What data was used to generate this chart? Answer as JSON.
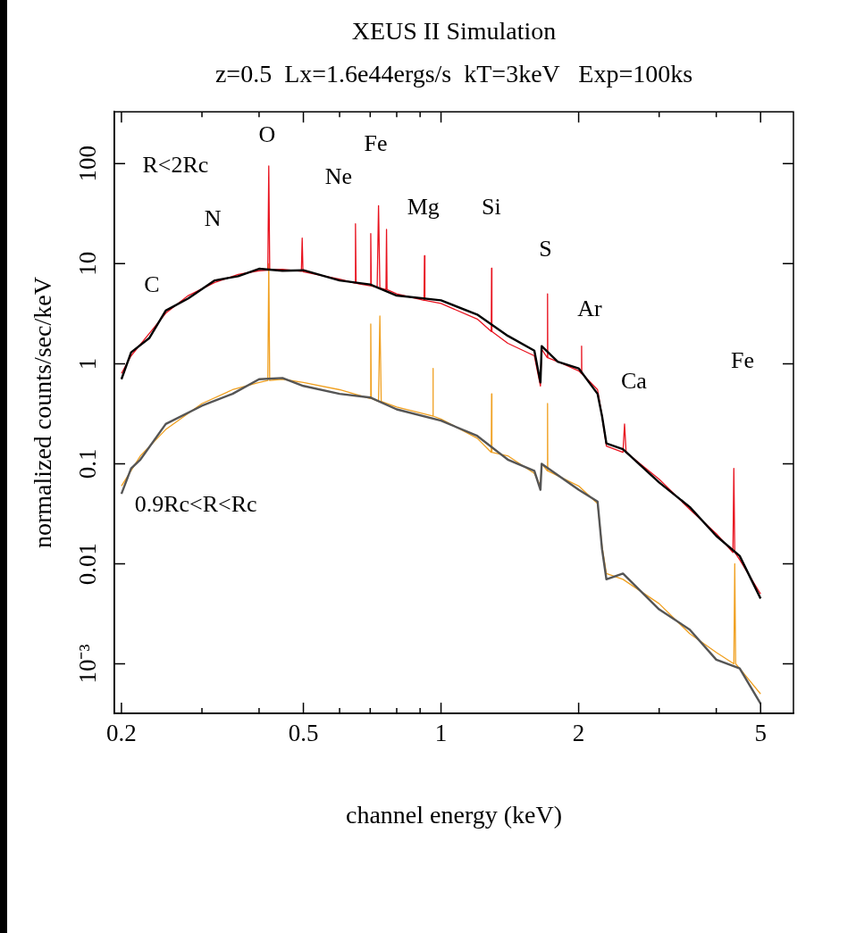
{
  "chart_data": {
    "type": "line",
    "title": "XEUS II Simulation",
    "subtitle": "z=0.5  Lx=1.6e44ergs/s  kT=3keV   Exp=100ks",
    "xlabel": "channel energy (keV)",
    "ylabel": "normalized counts/sec/keV",
    "log": "xy",
    "grid": false,
    "legend": false,
    "marker": "none",
    "xlim": [
      0.193,
      5.9
    ],
    "ylim": [
      0.00032,
      330
    ],
    "xticks": [
      0.2,
      {
        "value": 0.3,
        "label": null
      },
      {
        "value": 0.4,
        "label": null
      },
      0.5,
      {
        "value": 0.6,
        "label": null
      },
      {
        "value": 0.7,
        "label": null
      },
      {
        "value": 0.8,
        "label": null
      },
      {
        "value": 0.9,
        "label": null
      },
      1,
      2,
      {
        "value": 3,
        "label": null
      },
      {
        "value": 4,
        "label": null
      },
      5
    ],
    "yticks": [
      {
        "value": 0.001,
        "label": "10⁻³"
      },
      0.01,
      0.1,
      1,
      10,
      100
    ],
    "series": [
      {
        "color": "#000000",
        "x": [
          0.2,
          0.21,
          0.23,
          0.25,
          0.28,
          0.32,
          0.36,
          0.4,
          0.45,
          0.5,
          0.6,
          0.7,
          0.8,
          1.0,
          1.2,
          1.4,
          1.6,
          1.65,
          1.66,
          1.8,
          2.0,
          2.2,
          2.25,
          2.3,
          2.5,
          3.0,
          3.5,
          4.0,
          4.5,
          5.0
        ],
        "values": [
          0.7,
          1.3,
          1.8,
          3.4,
          4.5,
          6.8,
          7.5,
          8.9,
          8.5,
          8.6,
          6.8,
          6.2,
          4.8,
          4.3,
          3.1,
          1.9,
          1.35,
          0.65,
          1.5,
          1.05,
          0.9,
          0.5,
          0.3,
          0.16,
          0.14,
          0.065,
          0.037,
          0.019,
          0.012,
          0.0045
        ]
      },
      {
        "color": "#e8121e",
        "x": [
          0.2,
          0.21,
          0.23,
          0.25,
          0.28,
          0.32,
          0.36,
          0.4,
          0.418,
          0.42,
          0.422,
          0.45,
          0.495,
          0.497,
          0.499,
          0.6,
          0.648,
          0.65,
          0.652,
          0.66,
          0.7,
          0.702,
          0.704,
          0.725,
          0.73,
          0.735,
          0.758,
          0.76,
          0.762,
          0.8,
          0.918,
          0.92,
          0.922,
          1.0,
          1.2,
          1.288,
          1.29,
          1.292,
          1.4,
          1.6,
          1.65,
          1.66,
          1.708,
          1.71,
          1.712,
          1.8,
          2.0,
          2.028,
          2.03,
          2.032,
          2.2,
          2.25,
          2.3,
          2.5,
          2.52,
          2.54,
          3.0,
          3.5,
          4.0,
          4.35,
          4.37,
          4.39,
          4.5,
          5.0
        ],
        "values": [
          0.8,
          1.2,
          2.0,
          3.2,
          4.8,
          6.5,
          7.8,
          8.5,
          8.6,
          95,
          8.7,
          8.8,
          8.4,
          18,
          8.3,
          7.0,
          6.4,
          25,
          6.4,
          6.3,
          6.0,
          20,
          6.0,
          5.8,
          38,
          5.7,
          5.5,
          22,
          5.5,
          5.0,
          4.3,
          12,
          4.3,
          4.0,
          2.8,
          2.1,
          9,
          2.1,
          1.6,
          1.2,
          0.6,
          1.4,
          1.15,
          5,
          1.15,
          1.05,
          0.85,
          0.8,
          1.5,
          0.8,
          0.55,
          0.3,
          0.15,
          0.13,
          0.25,
          0.13,
          0.07,
          0.035,
          0.02,
          0.013,
          0.09,
          0.013,
          0.011,
          0.005
        ]
      },
      {
        "color": "#555555",
        "x": [
          0.2,
          0.21,
          0.22,
          0.25,
          0.3,
          0.35,
          0.4,
          0.45,
          0.5,
          0.6,
          0.7,
          0.8,
          1.0,
          1.2,
          1.4,
          1.6,
          1.65,
          1.66,
          2.0,
          2.2,
          2.25,
          2.3,
          2.5,
          3.0,
          3.5,
          4.0,
          4.5,
          5.0
        ],
        "values": [
          0.05,
          0.09,
          0.11,
          0.25,
          0.38,
          0.5,
          0.7,
          0.72,
          0.6,
          0.5,
          0.46,
          0.35,
          0.27,
          0.19,
          0.11,
          0.085,
          0.055,
          0.1,
          0.055,
          0.042,
          0.014,
          0.007,
          0.008,
          0.0035,
          0.0022,
          0.0011,
          0.0009,
          0.0004
        ]
      },
      {
        "color": "#f0a020",
        "x": [
          0.2,
          0.22,
          0.25,
          0.3,
          0.35,
          0.4,
          0.418,
          0.42,
          0.422,
          0.45,
          0.5,
          0.6,
          0.7,
          0.702,
          0.704,
          0.73,
          0.735,
          0.74,
          0.8,
          0.958,
          0.96,
          0.962,
          1.0,
          1.2,
          1.288,
          1.29,
          1.292,
          1.4,
          1.6,
          1.65,
          1.66,
          1.708,
          1.71,
          1.712,
          2.0,
          2.2,
          2.25,
          2.3,
          2.5,
          3.0,
          3.5,
          4.0,
          4.37,
          4.39,
          4.41,
          4.5,
          5.0
        ],
        "values": [
          0.06,
          0.12,
          0.22,
          0.4,
          0.55,
          0.65,
          0.68,
          10,
          0.68,
          0.7,
          0.65,
          0.55,
          0.45,
          2.5,
          0.45,
          0.42,
          3,
          0.42,
          0.37,
          0.3,
          0.9,
          0.3,
          0.28,
          0.18,
          0.13,
          0.5,
          0.13,
          0.12,
          0.08,
          0.06,
          0.1,
          0.085,
          0.4,
          0.085,
          0.06,
          0.04,
          0.015,
          0.008,
          0.007,
          0.004,
          0.002,
          0.0013,
          0.001,
          0.01,
          0.001,
          0.0009,
          0.0005
        ]
      }
    ],
    "annotations": [
      "R<2Rc",
      "0.9Rc<R<Rc",
      "C",
      "N",
      "O",
      "Ne",
      "Fe",
      "Mg",
      "Si",
      "S",
      "Ar",
      "Ca",
      "Fe"
    ]
  }
}
